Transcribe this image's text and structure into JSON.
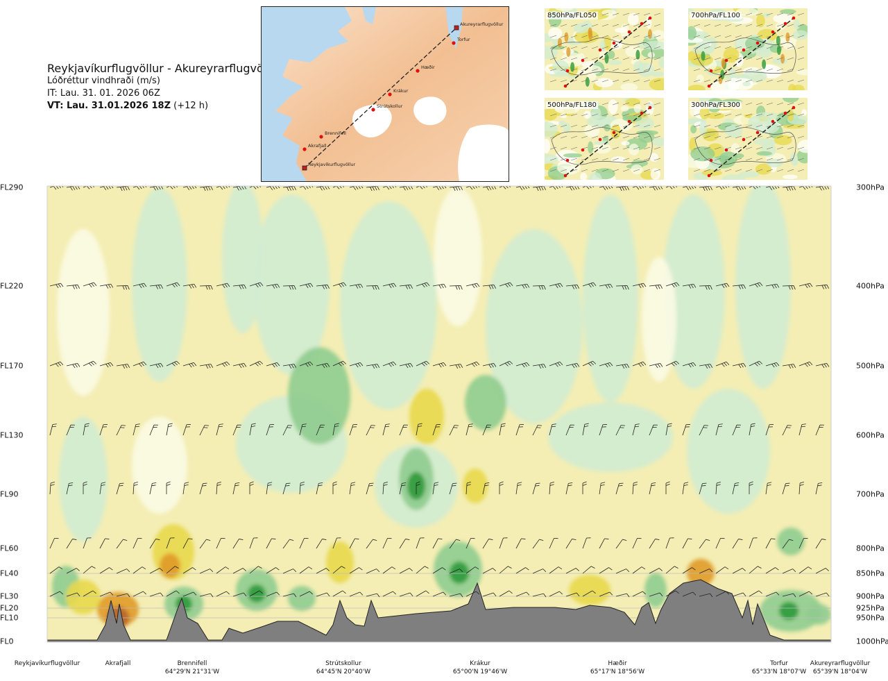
{
  "title": {
    "route": "Reykjavíkurflugvöllur - Akureyrarflugvöllur",
    "parameter": "Lóðréttur vindhraði (m/s)",
    "issue_time": "IT: Lau. 31. 01. 2026 06Z",
    "valid_time_bold": "VT: Lau. 31.01.2026 18Z",
    "valid_time_offset": "(+12 h)"
  },
  "map": {
    "waypoints": [
      {
        "name": "Akureyrarflugvöllur"
      },
      {
        "name": "Torfur"
      },
      {
        "name": "Hæðir"
      },
      {
        "name": "Krákur"
      },
      {
        "name": "Strútskollur"
      },
      {
        "name": "Brennifell"
      },
      {
        "name": "Akrafjall"
      },
      {
        "name": "Reykjavíkurflugvöllur"
      }
    ]
  },
  "insets": [
    {
      "label": "850hPa/FL050"
    },
    {
      "label": "700hPa/FL100"
    },
    {
      "label": "500hPa/FL180"
    },
    {
      "label": "300hPa/FL300"
    }
  ],
  "cross_section": {
    "levels": [
      {
        "fl": "FL290",
        "hpa": "300hPa"
      },
      {
        "fl": "FL220",
        "hpa": "400hPa"
      },
      {
        "fl": "FL170",
        "hpa": "500hPa"
      },
      {
        "fl": "FL130",
        "hpa": "600hPa"
      },
      {
        "fl": "FL90",
        "hpa": "700hPa"
      },
      {
        "fl": "FL60",
        "hpa": "800hPa"
      },
      {
        "fl": "FL40",
        "hpa": "850hPa"
      },
      {
        "fl": "FL30",
        "hpa": "900hPa"
      },
      {
        "fl": "FL20",
        "hpa": "925hPa"
      },
      {
        "fl": "FL10",
        "hpa": "950hPa"
      },
      {
        "fl": "FL0",
        "hpa": "1000hPa"
      }
    ],
    "locations": [
      {
        "name": "Reykjavíkurflugvöllur",
        "coord": ""
      },
      {
        "name": "Akrafjall",
        "coord": ""
      },
      {
        "name": "Brennifell",
        "coord": "64°29'N 21°31'W"
      },
      {
        "name": "Strútskollur",
        "coord": "64°45'N 20°40'W"
      },
      {
        "name": "Krákur",
        "coord": "65°00'N 19°46'W"
      },
      {
        "name": "Hæðir",
        "coord": "65°17'N 18°56'W"
      },
      {
        "name": "Torfur",
        "coord": "65°33'N 18°07'W"
      },
      {
        "name": "Akureyrarflugvöllur",
        "coord": "65°39'N 18°04'W"
      }
    ]
  },
  "colors": {
    "updraft_weak": "#f4eeb4",
    "updraft_moderate": "#e8d84a",
    "updraft_strong": "#e09a2a",
    "updraft_extreme": "#b8642a",
    "downdraft_weak": "#d2ecd2",
    "downdraft_moderate": "#8fcc8f",
    "downdraft_strong": "#2e9a3a",
    "near_zero": "#fbfbe4",
    "terrain": "#7f7f7f",
    "route": "#222222",
    "waypoint": "#e01010"
  }
}
